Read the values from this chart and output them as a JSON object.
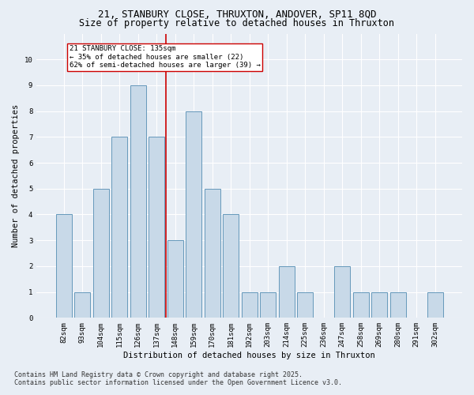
{
  "title": "21, STANBURY CLOSE, THRUXTON, ANDOVER, SP11 8QD",
  "subtitle": "Size of property relative to detached houses in Thruxton",
  "xlabel": "Distribution of detached houses by size in Thruxton",
  "ylabel": "Number of detached properties",
  "footer": "Contains HM Land Registry data © Crown copyright and database right 2025.\nContains public sector information licensed under the Open Government Licence v3.0.",
  "categories": [
    "82sqm",
    "93sqm",
    "104sqm",
    "115sqm",
    "126sqm",
    "137sqm",
    "148sqm",
    "159sqm",
    "170sqm",
    "181sqm",
    "192sqm",
    "203sqm",
    "214sqm",
    "225sqm",
    "236sqm",
    "247sqm",
    "258sqm",
    "269sqm",
    "280sqm",
    "291sqm",
    "302sqm"
  ],
  "values": [
    4,
    1,
    5,
    7,
    9,
    7,
    3,
    8,
    5,
    4,
    1,
    1,
    2,
    1,
    0,
    2,
    1,
    1,
    1,
    0,
    1
  ],
  "bar_color": "#c8d9e8",
  "bar_edge_color": "#6699bb",
  "property_line_index": 5,
  "property_line_color": "#cc0000",
  "annotation_text": "21 STANBURY CLOSE: 135sqm\n← 35% of detached houses are smaller (22)\n62% of semi-detached houses are larger (39) →",
  "annotation_box_facecolor": "#ffffff",
  "annotation_box_edgecolor": "#cc0000",
  "ylim": [
    0,
    11
  ],
  "yticks": [
    0,
    1,
    2,
    3,
    4,
    5,
    6,
    7,
    8,
    9,
    10
  ],
  "bg_color": "#e8eef5",
  "plot_bg_color": "#e8eef5",
  "grid_color": "#ffffff",
  "title_fontsize": 9,
  "subtitle_fontsize": 8.5,
  "axis_label_fontsize": 7.5,
  "tick_fontsize": 6.5,
  "annotation_fontsize": 6.5,
  "footer_fontsize": 6.0
}
